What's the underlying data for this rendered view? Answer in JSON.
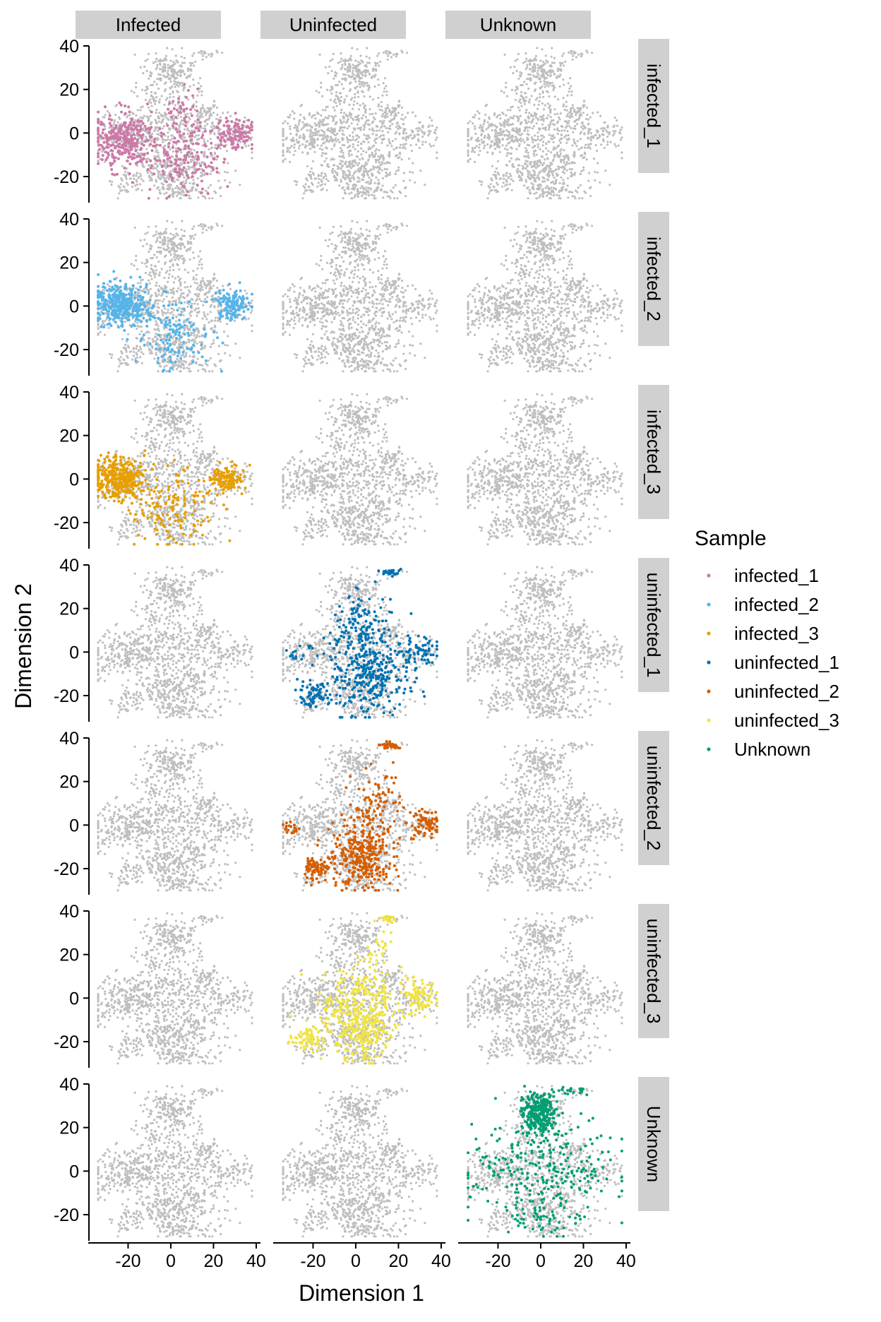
{
  "chart_data": {
    "type": "scatter",
    "xlabel": "Dimension 1",
    "ylabel": "Dimension 2",
    "xlim": [
      -38,
      42
    ],
    "ylim": [
      -32,
      40
    ],
    "x_ticks": [
      -20,
      0,
      20,
      40
    ],
    "y_ticks": [
      -20,
      0,
      20,
      40
    ],
    "grid": false,
    "background_point_color": "#bebebe",
    "legend_position": "right",
    "legend_title": "Sample",
    "columns": [
      "Infected",
      "Uninfected",
      "Unknown"
    ],
    "rows": [
      "infected_1",
      "infected_2",
      "infected_3",
      "uninfected_1",
      "uninfected_2",
      "uninfected_3",
      "Unknown"
    ],
    "row_column": {
      "infected_1": "Infected",
      "infected_2": "Infected",
      "infected_3": "Infected",
      "uninfected_1": "Uninfected",
      "uninfected_2": "Uninfected",
      "uninfected_3": "Uninfected",
      "Unknown": "Unknown"
    },
    "series": [
      {
        "name": "infected_1",
        "color": "#cc79a7"
      },
      {
        "name": "infected_2",
        "color": "#56b4e9"
      },
      {
        "name": "infected_3",
        "color": "#e69f00"
      },
      {
        "name": "uninfected_1",
        "color": "#0072b2"
      },
      {
        "name": "uninfected_2",
        "color": "#d55e00"
      },
      {
        "name": "uninfected_3",
        "color": "#f0e442"
      },
      {
        "name": "Unknown",
        "color": "#009e73"
      }
    ],
    "cell_clusters": [
      {
        "cx": 0,
        "cy": 28,
        "sx": 6.5,
        "sy": 5,
        "w": 0.16
      },
      {
        "cx": 16,
        "cy": 36.5,
        "sx": 3,
        "sy": 0.8,
        "w": 0.015
      },
      {
        "cx": -22,
        "cy": -2,
        "sx": 8,
        "sy": 5.5,
        "w": 0.17
      },
      {
        "cx": 30,
        "cy": 0,
        "sx": 4.5,
        "sy": 4.5,
        "w": 0.07
      },
      {
        "cx": -5,
        "cy": -18,
        "sx": 5,
        "sy": 5,
        "w": 0.09
      },
      {
        "cx": 10,
        "cy": -16,
        "sx": 8,
        "sy": 7,
        "w": 0.16
      },
      {
        "cx": -20,
        "cy": -22,
        "sx": 3.5,
        "sy": 3.5,
        "w": 0.04
      },
      {
        "cx": 2,
        "cy": 2,
        "sx": 10,
        "sy": 6,
        "w": 0.14
      },
      {
        "cx": -8,
        "cy": 12,
        "sx": 6,
        "sy": 6,
        "w": 0.06
      },
      {
        "cx": 15,
        "cy": 8,
        "sx": 5,
        "sy": 5,
        "w": 0.05
      },
      {
        "cx": 5,
        "cy": -27,
        "sx": 6,
        "sy": 1.8,
        "w": 0.04
      }
    ],
    "sample_clusters": {
      "infected_1": [
        {
          "cx": -22,
          "cy": -3,
          "sx": 7,
          "sy": 6,
          "w": 0.45
        },
        {
          "cx": 30,
          "cy": 0,
          "sx": 4.5,
          "sy": 4,
          "w": 0.18
        },
        {
          "cx": 5,
          "cy": -14,
          "sx": 9,
          "sy": 8,
          "w": 0.27
        },
        {
          "cx": 6,
          "cy": 8,
          "sx": 5,
          "sy": 6,
          "w": 0.1
        }
      ],
      "infected_2": [
        {
          "cx": -24,
          "cy": 1,
          "sx": 6.5,
          "sy": 4.5,
          "w": 0.58
        },
        {
          "cx": 29,
          "cy": 1,
          "sx": 4,
          "sy": 3.5,
          "w": 0.22
        },
        {
          "cx": 2,
          "cy": -14,
          "sx": 8,
          "sy": 8,
          "w": 0.2
        }
      ],
      "infected_3": [
        {
          "cx": -25,
          "cy": 0,
          "sx": 6.5,
          "sy": 4.5,
          "w": 0.55
        },
        {
          "cx": 27,
          "cy": 0,
          "sx": 4,
          "sy": 3,
          "w": 0.18
        },
        {
          "cx": 0,
          "cy": -12,
          "sx": 10,
          "sy": 9,
          "w": 0.27
        }
      ],
      "uninfected_1": [
        {
          "cx": 7,
          "cy": -10,
          "sx": 9,
          "sy": 10,
          "w": 0.5
        },
        {
          "cx": -20,
          "cy": -20,
          "sx": 3.5,
          "sy": 3.5,
          "w": 0.12
        },
        {
          "cx": 30,
          "cy": 0,
          "sx": 5,
          "sy": 4,
          "w": 0.13
        },
        {
          "cx": 3,
          "cy": 12,
          "sx": 6,
          "sy": 7,
          "w": 0.15
        },
        {
          "cx": 16,
          "cy": 36.5,
          "sx": 2,
          "sy": 0.8,
          "w": 0.05
        },
        {
          "cx": -25,
          "cy": 0,
          "sx": 5,
          "sy": 3,
          "w": 0.05
        }
      ],
      "uninfected_2": [
        {
          "cx": 3,
          "cy": -14,
          "sx": 7,
          "sy": 8,
          "w": 0.52
        },
        {
          "cx": -19,
          "cy": -20,
          "sx": 3,
          "sy": 3,
          "w": 0.12
        },
        {
          "cx": 33,
          "cy": 0,
          "sx": 4,
          "sy": 3.5,
          "w": 0.12
        },
        {
          "cx": 10,
          "cy": 10,
          "sx": 6,
          "sy": 7,
          "w": 0.14
        },
        {
          "cx": 16,
          "cy": 36.5,
          "sx": 2,
          "sy": 0.8,
          "w": 0.05
        },
        {
          "cx": -30,
          "cy": -1,
          "sx": 3,
          "sy": 2,
          "w": 0.05
        }
      ],
      "uninfected_3": [
        {
          "cx": 3,
          "cy": -14,
          "sx": 8,
          "sy": 7,
          "w": 0.45
        },
        {
          "cx": -22,
          "cy": -18,
          "sx": 3.5,
          "sy": 3,
          "w": 0.12
        },
        {
          "cx": 30,
          "cy": 0,
          "sx": 4,
          "sy": 3.5,
          "w": 0.13
        },
        {
          "cx": 0,
          "cy": 2,
          "sx": 10,
          "sy": 6,
          "w": 0.2
        },
        {
          "cx": 16,
          "cy": 36.5,
          "sx": 2,
          "sy": 0.8,
          "w": 0.04
        },
        {
          "cx": 10,
          "cy": 20,
          "sx": 5,
          "sy": 6,
          "w": 0.06
        }
      ],
      "Unknown": [
        {
          "cx": -1,
          "cy": 27,
          "sx": 4,
          "sy": 5,
          "w": 0.4
        },
        {
          "cx": 0,
          "cy": 0,
          "sx": 17,
          "sy": 11,
          "w": 0.5
        },
        {
          "cx": 15,
          "cy": 36.5,
          "sx": 3,
          "sy": 0.8,
          "w": 0.04
        },
        {
          "cx": 2,
          "cy": -22,
          "sx": 8,
          "sy": 4,
          "w": 0.06
        }
      ]
    }
  }
}
